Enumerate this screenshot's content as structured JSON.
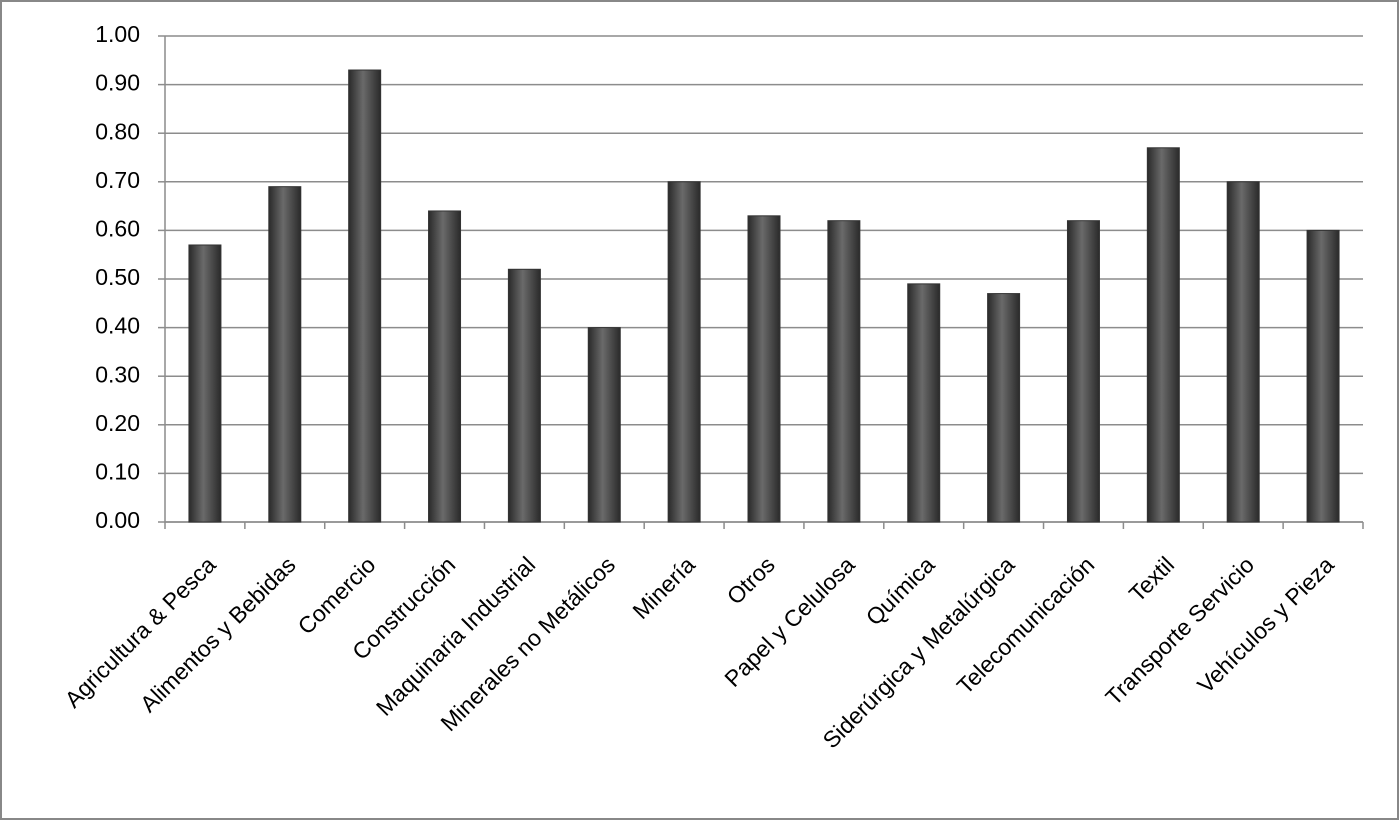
{
  "chart_data": {
    "type": "bar",
    "categories": [
      "Agricultura & Pesca",
      "Alimentos y Bebidas",
      "Comercio",
      "Construcción",
      "Maquinaria Industrial",
      "Minerales no Metálicos",
      "Minería",
      "Otros",
      "Papel y Celulosa",
      "Química",
      "Siderúrgica y Metalúrgica",
      "Telecomunicación",
      "Textil",
      "Transporte Servicio",
      "Vehículos y Pieza"
    ],
    "values": [
      0.57,
      0.69,
      0.93,
      0.64,
      0.52,
      0.4,
      0.7,
      0.63,
      0.62,
      0.49,
      0.47,
      0.62,
      0.77,
      0.7,
      0.6
    ],
    "color": "#6a6a6a",
    "ylim": [
      0,
      1
    ],
    "yticks": [
      {
        "value": 0,
        "label": "0.00"
      },
      {
        "value": 0.1,
        "label": "0.10"
      },
      {
        "value": 0.2,
        "label": "0.20"
      },
      {
        "value": 0.3,
        "label": "0.30"
      },
      {
        "value": 0.4,
        "label": "0.40"
      },
      {
        "value": 0.5,
        "label": "0.50"
      },
      {
        "value": 0.6,
        "label": "0.60"
      },
      {
        "value": 0.7,
        "label": "0.70"
      },
      {
        "value": 0.8,
        "label": "0.80"
      },
      {
        "value": 0.9,
        "label": "0.90"
      },
      {
        "value": 1,
        "label": "1.00"
      }
    ],
    "grid": true
  }
}
